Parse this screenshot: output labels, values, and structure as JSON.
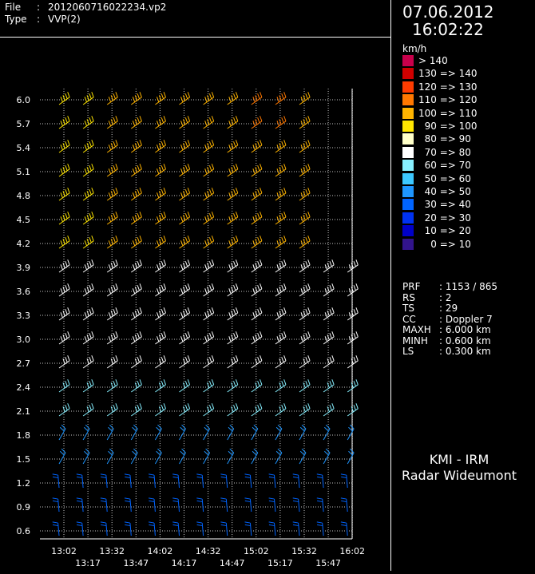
{
  "header": {
    "file_label": "File",
    "file_value": "2012060716022234.vp2",
    "type_label": "Type",
    "type_value": "VVP(2)",
    "sep": ":"
  },
  "datetime": {
    "date": "07.06.2012",
    "time": "16:02:22"
  },
  "legend": {
    "unit": "km/h",
    "items": [
      {
        "label": "> 140",
        "color": "#c8004b"
      },
      {
        "label": "130 => 140",
        "color": "#d10000"
      },
      {
        "label": "120 => 130",
        "color": "#ff3c00"
      },
      {
        "label": "110 => 120",
        "color": "#ff7800"
      },
      {
        "label": "100 => 110",
        "color": "#ffb400"
      },
      {
        "label": "  90 => 100",
        "color": "#ffe600"
      },
      {
        "label": "  80 => 90",
        "color": "#ffffc8"
      },
      {
        "label": "  70 => 80",
        "color": "#ffffff"
      },
      {
        "label": "  60 => 70",
        "color": "#87f0ff"
      },
      {
        "label": "  50 => 60",
        "color": "#3cc8ff"
      },
      {
        "label": "  40 => 50",
        "color": "#1e96ff"
      },
      {
        "label": "  30 => 40",
        "color": "#0064ff"
      },
      {
        "label": "  20 => 30",
        "color": "#0032f0"
      },
      {
        "label": "  10 => 20",
        "color": "#0000c8"
      },
      {
        "label": "    0 => 10",
        "color": "#32148c"
      }
    ]
  },
  "info": [
    {
      "key": "PRF",
      "value": ": 1153 / 865"
    },
    {
      "key": "RS",
      "value": ": 2"
    },
    {
      "key": "TS",
      "value": ": 29"
    },
    {
      "key": "CC",
      "value": ": Doppler 7"
    },
    {
      "key": "MAXH",
      "value": ": 6.000 km"
    },
    {
      "key": "MINH",
      "value": ": 0.600 km"
    },
    {
      "key": "LS",
      "value": ": 0.300 km"
    }
  ],
  "org": {
    "line1": "KMI - IRM",
    "line2": "Radar Wideumont"
  },
  "chart_data": {
    "type": "wind-barb profile",
    "y_ticks": [
      "6.0",
      "5.7",
      "5.4",
      "5.1",
      "4.8",
      "4.5",
      "4.2",
      "3.9",
      "3.6",
      "3.3",
      "3.0",
      "2.7",
      "2.4",
      "2.1",
      "1.8",
      "1.5",
      "1.2",
      "0.9",
      "0.6"
    ],
    "x_ticks_top": [
      "13:02",
      "13:32",
      "14:02",
      "14:32",
      "15:02",
      "15:32",
      "16:02"
    ],
    "x_ticks_bottom": [
      "13:17",
      "13:47",
      "14:17",
      "14:47",
      "15:17",
      "15:47"
    ],
    "grid": true
  }
}
